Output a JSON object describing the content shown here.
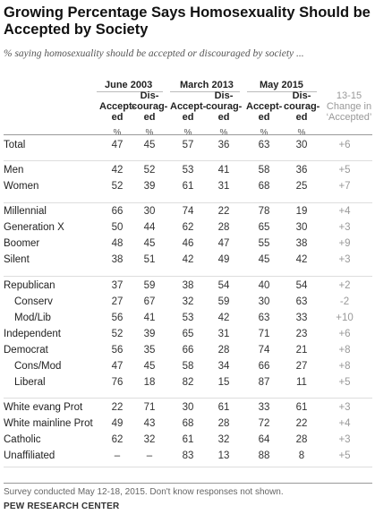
{
  "title": "Growing Percentage Says Homosexuality Should be Accepted by Society",
  "subtitle": "% saying homosexuality should be accepted or discouraged by society ...",
  "periods": [
    "June 2003",
    "March 2013",
    "May 2015"
  ],
  "columns": {
    "accepted": "Accept-\ned",
    "discouraged": "Dis-\ncourag-\ned",
    "unit": "%",
    "change": "13-15\nChange in\n‘Accepted’"
  },
  "rows": [
    {
      "label": "Total",
      "values": [
        "47",
        "45",
        "57",
        "36",
        "63",
        "30"
      ],
      "change": "+6"
    },
    {
      "label": "Men",
      "values": [
        "42",
        "52",
        "53",
        "41",
        "58",
        "36"
      ],
      "change": "+5"
    },
    {
      "label": "Women",
      "values": [
        "52",
        "39",
        "61",
        "31",
        "68",
        "25"
      ],
      "change": "+7"
    },
    {
      "label": "Millennial",
      "values": [
        "66",
        "30",
        "74",
        "22",
        "78",
        "19"
      ],
      "change": "+4"
    },
    {
      "label": "Generation X",
      "values": [
        "50",
        "44",
        "62",
        "28",
        "65",
        "30"
      ],
      "change": "+3"
    },
    {
      "label": "Boomer",
      "values": [
        "48",
        "45",
        "46",
        "47",
        "55",
        "38"
      ],
      "change": "+9"
    },
    {
      "label": "Silent",
      "values": [
        "38",
        "51",
        "42",
        "49",
        "45",
        "42"
      ],
      "change": "+3"
    },
    {
      "label": "Republican",
      "values": [
        "37",
        "59",
        "38",
        "54",
        "40",
        "54"
      ],
      "change": "+2"
    },
    {
      "label": "Conserv",
      "values": [
        "27",
        "67",
        "32",
        "59",
        "30",
        "63"
      ],
      "change": "-2"
    },
    {
      "label": "Mod/Lib",
      "values": [
        "56",
        "41",
        "53",
        "42",
        "63",
        "33"
      ],
      "change": "+10"
    },
    {
      "label": "Independent",
      "values": [
        "52",
        "39",
        "65",
        "31",
        "71",
        "23"
      ],
      "change": "+6"
    },
    {
      "label": "Democrat",
      "values": [
        "56",
        "35",
        "66",
        "28",
        "74",
        "21"
      ],
      "change": "+8"
    },
    {
      "label": "Cons/Mod",
      "values": [
        "47",
        "45",
        "58",
        "34",
        "66",
        "27"
      ],
      "change": "+8"
    },
    {
      "label": "Liberal",
      "values": [
        "76",
        "18",
        "82",
        "15",
        "87",
        "11"
      ],
      "change": "+5"
    },
    {
      "label": "White evang Prot",
      "values": [
        "22",
        "71",
        "30",
        "61",
        "33",
        "61"
      ],
      "change": "+3"
    },
    {
      "label": "White mainline Prot",
      "values": [
        "49",
        "43",
        "68",
        "28",
        "72",
        "22"
      ],
      "change": "+4"
    },
    {
      "label": "Catholic",
      "values": [
        "62",
        "32",
        "61",
        "32",
        "64",
        "28"
      ],
      "change": "+3"
    },
    {
      "label": "Unaffiliated",
      "values": [
        "–",
        "–",
        "83",
        "13",
        "88",
        "8"
      ],
      "change": "+5"
    }
  ],
  "footnote": "Survey conducted May 12-18, 2015. Don't know responses not shown.",
  "source": "PEW RESEARCH CENTER"
}
